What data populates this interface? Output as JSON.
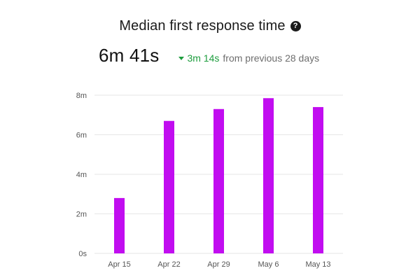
{
  "header": {
    "title": "Median first response time",
    "help_icon": "question-circle-icon"
  },
  "metric": {
    "value": "6m 41s",
    "delta_icon": "triangle-down-icon",
    "delta_value": "3m 14s",
    "delta_context": "from previous 28 days"
  },
  "colors": {
    "bar": "#c10df0",
    "delta_positive": "#1e9d3e",
    "grid": "#e6e6e6"
  },
  "chart_data": {
    "type": "bar",
    "categories": [
      "Apr 15",
      "Apr 22",
      "Apr 29",
      "May 6",
      "May 13"
    ],
    "values": [
      2.8,
      6.7,
      7.3,
      7.85,
      7.4
    ],
    "yticks": [
      0,
      2,
      4,
      6,
      8
    ],
    "ytick_labels": [
      "0s",
      "2m",
      "4m",
      "6m",
      "8m"
    ],
    "ylim": [
      0,
      8
    ],
    "grid": true,
    "legend": "none",
    "xlabel": "",
    "ylabel": ""
  }
}
